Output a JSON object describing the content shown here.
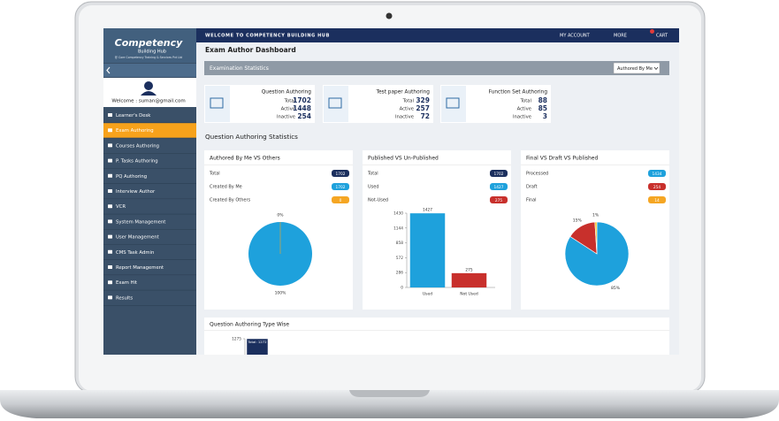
{
  "topbar": {
    "welcome": "WELCOME TO COMPETENCY BUILDING HUB",
    "menu": [
      "MY ACCOUNT",
      "MORE",
      "CART"
    ]
  },
  "sidebar": {
    "logo": "Competency",
    "logo_sub": "Building Hub",
    "logo_tag": "@ Core Competency Training & Services Pvt Ltd",
    "welcome": "Welcome : suman@gmail.com",
    "menu": [
      "Learner's Desk",
      "Exam Authoring",
      "Courses Authoring",
      "P. Tasks Authoring",
      "PQ Authoring",
      "Interview Author",
      "VCR",
      "System Management",
      "User Management",
      "CMS Task Admin",
      "Report Management",
      "Exam Hit",
      "Results"
    ],
    "active": 1
  },
  "page_title": "Exam Author Dashboard",
  "stats_bar": {
    "title": "Examination Statistics",
    "filter": "Authored By Me"
  },
  "stat_cards": [
    {
      "title": "Question Authoring",
      "rows": [
        {
          "label": "Total",
          "value": 1702
        },
        {
          "label": "Active",
          "value": 1448
        },
        {
          "label": "Inactive",
          "value": 254
        }
      ]
    },
    {
      "title": "Test paper Authoring",
      "rows": [
        {
          "label": "Total",
          "value": 329
        },
        {
          "label": "Active",
          "value": 257
        },
        {
          "label": "Inactive",
          "value": 72
        }
      ]
    },
    {
      "title": "Function Set Authoring",
      "rows": [
        {
          "label": "Total",
          "value": 88
        },
        {
          "label": "Active",
          "value": 85
        },
        {
          "label": "Inactive",
          "value": 3
        }
      ]
    }
  ],
  "section_title": "Question Authoring Statistics",
  "panels": [
    {
      "title": "Authored By Me VS Others",
      "rows": [
        {
          "label": "Total",
          "value": 1702,
          "color": "#1b2f5e"
        },
        {
          "label": "Created By Me",
          "value": 1702,
          "color": "#1ea1dc"
        },
        {
          "label": "Created By Others",
          "value": 0,
          "color": "#f5a623"
        }
      ],
      "chart": {
        "type": "pie",
        "values": [
          100,
          0
        ],
        "value_labels": [
          "100%",
          "0%"
        ],
        "colors": [
          "#1ea1dc",
          "#f5a623"
        ]
      }
    },
    {
      "title": "Published VS Un-Published",
      "rows": [
        {
          "label": "Total",
          "value": 1702,
          "color": "#1b2f5e"
        },
        {
          "label": "Used",
          "value": 1427,
          "color": "#1ea1dc"
        },
        {
          "label": "Not-Used",
          "value": 275,
          "color": "#c8302c"
        }
      ],
      "chart": {
        "type": "bar",
        "categories": [
          "Used",
          "Not Used"
        ],
        "values": [
          1427,
          275
        ],
        "colors": [
          "#1ea1dc",
          "#c8302c"
        ],
        "ylim": [
          0,
          1430
        ],
        "yticks": [
          0,
          286,
          572,
          858,
          1144,
          1430
        ]
      }
    },
    {
      "title": "Final VS Draft VS Published",
      "rows": [
        {
          "label": "Processed",
          "value": 1434,
          "color": "#1ea1dc"
        },
        {
          "label": "Draft",
          "value": 254,
          "color": "#c8302c"
        },
        {
          "label": "Final",
          "value": 14,
          "color": "#f5a623"
        }
      ],
      "chart": {
        "type": "pie",
        "values": [
          85,
          15,
          1
        ],
        "value_labels": [
          "85%",
          "15%",
          "1%"
        ],
        "colors": [
          "#1ea1dc",
          "#c8302c",
          "#f5c423"
        ]
      }
    }
  ],
  "bottom_panel": {
    "title": "Question Authoring Type Wise",
    "chart": {
      "type": "bar",
      "values": [
        1272
      ],
      "value_labels": [
        "Total: 1272"
      ],
      "color": "#1b2f5e",
      "ylim": [
        0,
        1275
      ],
      "yticks": [
        1275
      ]
    }
  }
}
